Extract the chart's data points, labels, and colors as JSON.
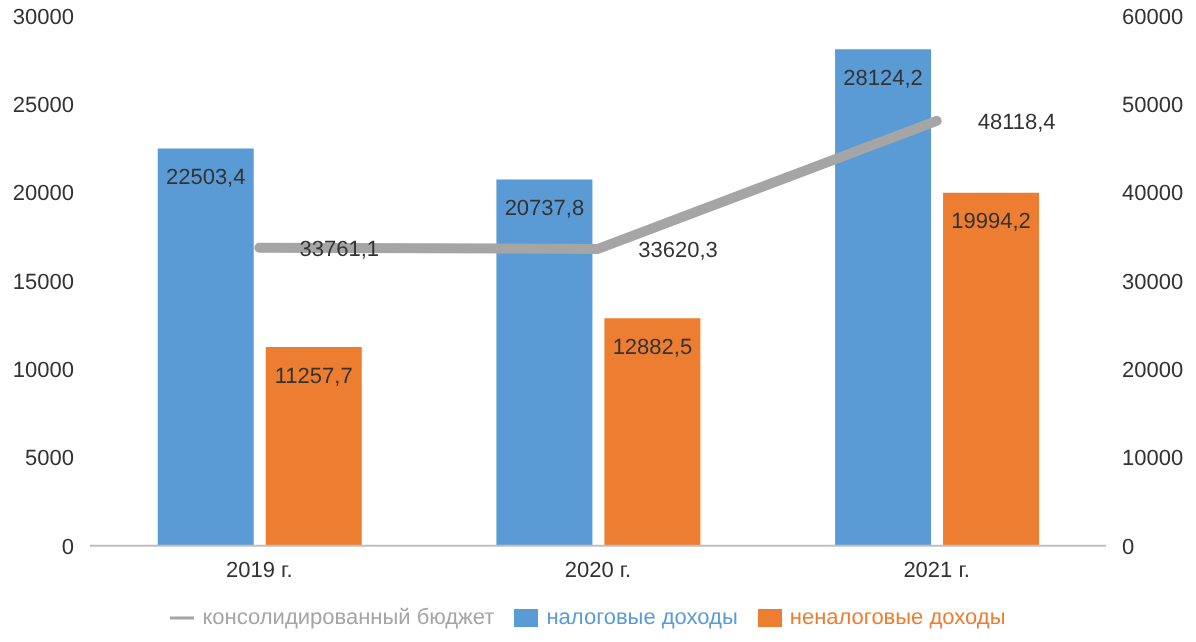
{
  "chart_data": {
    "type": "bar",
    "categories": [
      "2019 г.",
      "2020 г.",
      "2021 г."
    ],
    "series": [
      {
        "name": "налоговые доходы",
        "color": "#5b9bd5",
        "values": [
          22503.4,
          20737.8,
          28124.2
        ],
        "value_labels": [
          "22503,4",
          "20737,8",
          "28124,2"
        ]
      },
      {
        "name": "неналоговые доходы",
        "color": "#ed7d31",
        "values": [
          11257.7,
          12882.5,
          19994.2
        ],
        "value_labels": [
          "11257,7",
          "12882,5",
          "19994,2"
        ]
      },
      {
        "name": "консолидированный бюджет",
        "type": "line",
        "axis": "y2",
        "color": "#a5a5a5",
        "values": [
          33761.1,
          33620.3,
          48118.4
        ],
        "value_labels": [
          "33761,1",
          "33620,3",
          "48118,4"
        ]
      }
    ],
    "ylim": [
      0,
      30000
    ],
    "yticks": [
      0,
      5000,
      10000,
      15000,
      20000,
      25000,
      30000
    ],
    "y2lim": [
      0,
      60000
    ],
    "y2ticks": [
      0,
      10000,
      20000,
      30000,
      40000,
      50000,
      60000
    ],
    "grid": false,
    "legend": "bottom",
    "marker": "none",
    "line_style": "solid"
  }
}
